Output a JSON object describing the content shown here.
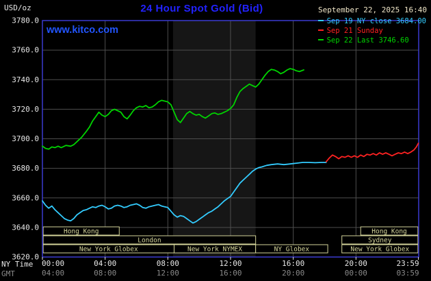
{
  "header": {
    "unit_label": "USD/oz",
    "title": "24 Hour Spot Gold (Bid)",
    "datetime": "September 22, 2025 16:40",
    "watermark": "www.kitco.com"
  },
  "colors": {
    "background": "#000000",
    "title": "#2222ff",
    "watermark": "#2255ff",
    "date_text": "#f0e6c8",
    "axis_text": "#e8e8e8",
    "gmt_text": "#8a8a8a",
    "grid": "#4e4e4e",
    "frame": "#3a3ad0",
    "band": "#161616",
    "session": "#d4d49a",
    "sep19": "#33ccff",
    "sep21": "#ff2222",
    "sep22": "#00d400"
  },
  "legend": {
    "position": "top-right",
    "items": [
      {
        "label": "Sep 19 NY close 3684.00",
        "color": "#33ccff"
      },
      {
        "label": "Sep 21 Sunday",
        "color": "#ff2222"
      },
      {
        "label": "Sep 22 Last 3746.60",
        "color": "#00d400"
      }
    ]
  },
  "axes": {
    "x_left_label": "NY Time",
    "x_left_label2": "GMT",
    "ny_ticks": [
      {
        "hour": 0,
        "label": "00:00"
      },
      {
        "hour": 4,
        "label": "04:00"
      },
      {
        "hour": 8,
        "label": "08:00"
      },
      {
        "hour": 12,
        "label": "12:00"
      },
      {
        "hour": 16,
        "label": "16:00"
      },
      {
        "hour": 20,
        "label": "20:00"
      },
      {
        "hour": 23.983,
        "label": "23:59"
      }
    ],
    "gmt_labels": [
      "04:00",
      "08:00",
      "12:00",
      "16:00",
      "20:00",
      "00:00",
      "03:59"
    ],
    "y_ticks": [
      3620,
      3640,
      3660,
      3680,
      3700,
      3720,
      3740,
      3760,
      3780
    ]
  },
  "sessions": [
    {
      "row": 0,
      "label": "Hong Kong",
      "start": 0.05,
      "end": 4.9
    },
    {
      "row": 0,
      "label": "Hong Kong",
      "start": 20.3,
      "end": 23.95
    },
    {
      "row": 1,
      "label": "London",
      "start": 0.05,
      "end": 13.6
    },
    {
      "row": 1,
      "label": "Sydney",
      "start": 19.1,
      "end": 23.95
    },
    {
      "row": 2,
      "label": "New York Globex",
      "start": 0.05,
      "end": 8.4
    },
    {
      "row": 2,
      "label": "New York NYMEX",
      "start": 8.4,
      "end": 13.6
    },
    {
      "row": 2,
      "label": "NY Globex",
      "start": 13.6,
      "end": 18.2
    },
    {
      "row": 2,
      "label": "New York Globex",
      "start": 19.1,
      "end": 23.95
    }
  ],
  "chart_data": {
    "type": "line",
    "title": "24 Hour Spot Gold (Bid)",
    "xlabel": "NY Time",
    "ylabel": "USD/oz",
    "ylim": [
      3620,
      3780
    ],
    "xlim_hours": [
      0,
      24
    ],
    "grid": true,
    "legend_position": "top-right",
    "highlight_band_hours": [
      8.33,
      13.6
    ],
    "series": [
      {
        "id": "sep19-ny-close",
        "name": "Sep 19 NY close",
        "close_value": 3684.0,
        "color": "#33ccff",
        "points": [
          [
            0,
            3658
          ],
          [
            0.2,
            3655
          ],
          [
            0.4,
            3653
          ],
          [
            0.6,
            3654.5
          ],
          [
            0.8,
            3652
          ],
          [
            1,
            3650
          ],
          [
            1.2,
            3648
          ],
          [
            1.4,
            3646
          ],
          [
            1.6,
            3645
          ],
          [
            1.8,
            3644.5
          ],
          [
            2,
            3646
          ],
          [
            2.2,
            3648.5
          ],
          [
            2.4,
            3650
          ],
          [
            2.6,
            3651.5
          ],
          [
            2.8,
            3652
          ],
          [
            3,
            3653
          ],
          [
            3.2,
            3654
          ],
          [
            3.4,
            3653.5
          ],
          [
            3.6,
            3654.5
          ],
          [
            3.8,
            3655
          ],
          [
            4,
            3654
          ],
          [
            4.2,
            3652.5
          ],
          [
            4.4,
            3653
          ],
          [
            4.6,
            3654.5
          ],
          [
            4.8,
            3655
          ],
          [
            5,
            3654.5
          ],
          [
            5.2,
            3653.5
          ],
          [
            5.4,
            3654
          ],
          [
            5.6,
            3655
          ],
          [
            5.8,
            3655.5
          ],
          [
            6,
            3656
          ],
          [
            6.2,
            3655
          ],
          [
            6.4,
            3653.5
          ],
          [
            6.6,
            3653
          ],
          [
            6.8,
            3654
          ],
          [
            7,
            3654.5
          ],
          [
            7.2,
            3655
          ],
          [
            7.4,
            3655.5
          ],
          [
            7.6,
            3654.5
          ],
          [
            7.8,
            3654
          ],
          [
            8,
            3653.5
          ],
          [
            8.2,
            3651
          ],
          [
            8.4,
            3648.5
          ],
          [
            8.6,
            3647
          ],
          [
            8.8,
            3648
          ],
          [
            9,
            3647.5
          ],
          [
            9.2,
            3646
          ],
          [
            9.4,
            3644.5
          ],
          [
            9.6,
            3643
          ],
          [
            9.8,
            3644
          ],
          [
            10,
            3645.5
          ],
          [
            10.2,
            3647
          ],
          [
            10.4,
            3648.5
          ],
          [
            10.6,
            3650
          ],
          [
            10.8,
            3651
          ],
          [
            11,
            3652.5
          ],
          [
            11.2,
            3654
          ],
          [
            11.4,
            3656
          ],
          [
            11.6,
            3658
          ],
          [
            11.8,
            3659.5
          ],
          [
            12,
            3661
          ],
          [
            12.2,
            3664
          ],
          [
            12.4,
            3667
          ],
          [
            12.6,
            3670
          ],
          [
            12.8,
            3672
          ],
          [
            13,
            3674
          ],
          [
            13.2,
            3676
          ],
          [
            13.4,
            3678
          ],
          [
            13.6,
            3679.5
          ],
          [
            13.8,
            3680.5
          ],
          [
            14,
            3681
          ],
          [
            14.3,
            3682
          ],
          [
            14.6,
            3682.5
          ],
          [
            15,
            3683
          ],
          [
            15.4,
            3682.5
          ],
          [
            15.8,
            3683
          ],
          [
            16.2,
            3683.5
          ],
          [
            16.6,
            3684
          ],
          [
            17,
            3684
          ],
          [
            17.4,
            3683.8
          ],
          [
            17.8,
            3684
          ],
          [
            18.1,
            3684
          ]
        ]
      },
      {
        "id": "sep21-sunday",
        "name": "Sep 21 Sunday",
        "color": "#ff2222",
        "points": [
          [
            18.1,
            3684.5
          ],
          [
            18.3,
            3687
          ],
          [
            18.5,
            3689
          ],
          [
            18.7,
            3688
          ],
          [
            18.9,
            3686.5
          ],
          [
            19.1,
            3688
          ],
          [
            19.3,
            3687.5
          ],
          [
            19.5,
            3688.5
          ],
          [
            19.7,
            3687.5
          ],
          [
            19.9,
            3688.5
          ],
          [
            20.1,
            3687.5
          ],
          [
            20.3,
            3689
          ],
          [
            20.5,
            3688
          ],
          [
            20.7,
            3689.5
          ],
          [
            20.9,
            3689
          ],
          [
            21.1,
            3690
          ],
          [
            21.3,
            3689
          ],
          [
            21.5,
            3690.5
          ],
          [
            21.7,
            3689.5
          ],
          [
            21.9,
            3690.5
          ],
          [
            22.1,
            3689.5
          ],
          [
            22.3,
            3688.5
          ],
          [
            22.5,
            3689.5
          ],
          [
            22.7,
            3690.5
          ],
          [
            22.9,
            3690
          ],
          [
            23.1,
            3691
          ],
          [
            23.3,
            3690
          ],
          [
            23.5,
            3691
          ],
          [
            23.7,
            3692.5
          ],
          [
            23.85,
            3694.5
          ],
          [
            23.98,
            3697
          ]
        ]
      },
      {
        "id": "sep22-today",
        "name": "Sep 22",
        "last_value": 3746.6,
        "color": "#00d400",
        "points": [
          [
            0,
            3695
          ],
          [
            0.2,
            3693.5
          ],
          [
            0.4,
            3693
          ],
          [
            0.6,
            3694.5
          ],
          [
            0.8,
            3694
          ],
          [
            1,
            3695
          ],
          [
            1.2,
            3694
          ],
          [
            1.5,
            3695.5
          ],
          [
            1.8,
            3695
          ],
          [
            2,
            3696
          ],
          [
            2.2,
            3698
          ],
          [
            2.5,
            3701
          ],
          [
            2.8,
            3705
          ],
          [
            3,
            3708
          ],
          [
            3.2,
            3712
          ],
          [
            3.4,
            3715
          ],
          [
            3.6,
            3718
          ],
          [
            3.8,
            3716
          ],
          [
            4,
            3715
          ],
          [
            4.2,
            3716.5
          ],
          [
            4.4,
            3719
          ],
          [
            4.6,
            3720
          ],
          [
            4.8,
            3719
          ],
          [
            5,
            3718
          ],
          [
            5.2,
            3715
          ],
          [
            5.4,
            3713.5
          ],
          [
            5.6,
            3716
          ],
          [
            5.8,
            3719
          ],
          [
            6,
            3721
          ],
          [
            6.2,
            3722
          ],
          [
            6.4,
            3721.5
          ],
          [
            6.6,
            3722.5
          ],
          [
            6.8,
            3721
          ],
          [
            7,
            3721.5
          ],
          [
            7.2,
            3723
          ],
          [
            7.4,
            3725
          ],
          [
            7.6,
            3726
          ],
          [
            7.8,
            3725.5
          ],
          [
            8,
            3725
          ],
          [
            8.2,
            3723
          ],
          [
            8.4,
            3718
          ],
          [
            8.6,
            3713
          ],
          [
            8.8,
            3711
          ],
          [
            9,
            3714
          ],
          [
            9.2,
            3717
          ],
          [
            9.4,
            3718.5
          ],
          [
            9.6,
            3717
          ],
          [
            9.8,
            3716
          ],
          [
            10,
            3716.5
          ],
          [
            10.2,
            3715
          ],
          [
            10.4,
            3714
          ],
          [
            10.6,
            3715.5
          ],
          [
            10.8,
            3717
          ],
          [
            11,
            3717.5
          ],
          [
            11.2,
            3716.5
          ],
          [
            11.4,
            3717
          ],
          [
            11.6,
            3718
          ],
          [
            11.8,
            3719
          ],
          [
            12,
            3720.5
          ],
          [
            12.2,
            3723
          ],
          [
            12.4,
            3728
          ],
          [
            12.6,
            3732
          ],
          [
            12.8,
            3734
          ],
          [
            13,
            3735.5
          ],
          [
            13.2,
            3737
          ],
          [
            13.4,
            3736
          ],
          [
            13.6,
            3735
          ],
          [
            13.8,
            3737
          ],
          [
            14,
            3740
          ],
          [
            14.2,
            3743
          ],
          [
            14.4,
            3745.5
          ],
          [
            14.6,
            3747
          ],
          [
            14.8,
            3746.5
          ],
          [
            15,
            3745.5
          ],
          [
            15.2,
            3744
          ],
          [
            15.4,
            3745
          ],
          [
            15.6,
            3746.5
          ],
          [
            15.8,
            3747.5
          ],
          [
            16,
            3747
          ],
          [
            16.2,
            3746
          ],
          [
            16.4,
            3745.5
          ],
          [
            16.67,
            3746.6
          ]
        ]
      }
    ]
  }
}
